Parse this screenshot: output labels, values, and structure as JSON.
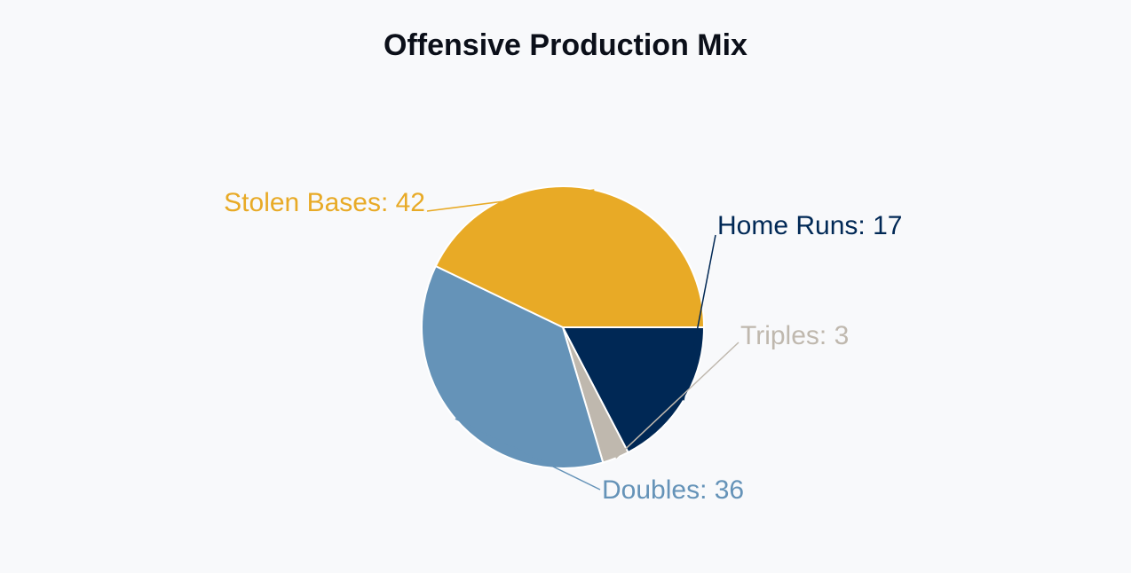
{
  "chart_data": {
    "type": "pie",
    "title": "Offensive Production Mix",
    "slices": [
      {
        "label": "Home Runs",
        "value": 17,
        "color": "#002855",
        "display": "Home Runs: 17"
      },
      {
        "label": "Triples",
        "value": 3,
        "color": "#bfb8ae",
        "display": "Triples: 3"
      },
      {
        "label": "Doubles",
        "value": 36,
        "color": "#6593b8",
        "display": "Doubles: 36"
      },
      {
        "label": "Stolen Bases",
        "value": 42,
        "color": "#e8aa26",
        "display": "Stolen Bases: 42"
      }
    ],
    "start_angle_deg": 0,
    "direction": "clockwise",
    "legend": "none",
    "labels": "outside-with-leaders"
  }
}
